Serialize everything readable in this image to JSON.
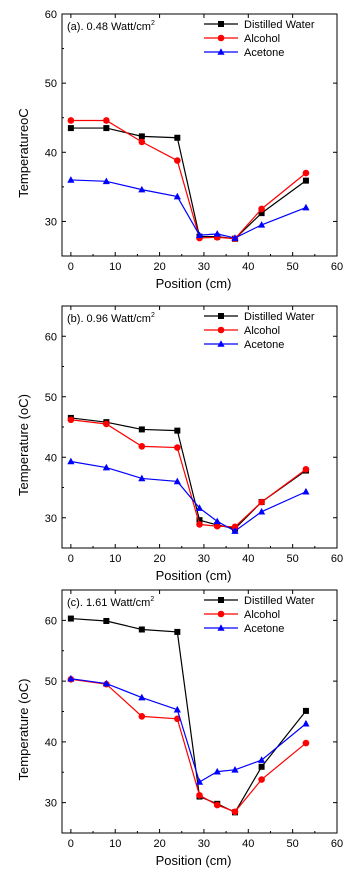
{
  "colors": {
    "distilled_water": "#000000",
    "alcohol": "#ff0000",
    "acetone": "#0000ff",
    "axis": "#000000"
  },
  "chart_data": [
    {
      "type": "line",
      "panel_label": "(a). 0.48 Watt/cm",
      "panel_label_sup": "2",
      "xlabel": "Position (cm)",
      "ylabel": "Temperature",
      "ylabel_unit": "oC",
      "xlim": [
        -2,
        60
      ],
      "ylim": [
        25,
        60
      ],
      "xticks": [
        0,
        10,
        20,
        30,
        40,
        50,
        60
      ],
      "yticks": [
        30,
        40,
        50,
        60
      ],
      "legend_position": "top-right",
      "x": [
        0,
        8,
        16,
        24,
        29,
        33,
        37,
        43,
        53
      ],
      "series": [
        {
          "name": "Distilled Water",
          "marker": "square",
          "values": [
            43.5,
            43.5,
            42.3,
            42.1,
            27.8,
            27.8,
            27.5,
            31.2,
            35.9
          ]
        },
        {
          "name": "Alcohol",
          "marker": "circle",
          "values": [
            44.6,
            44.6,
            41.5,
            38.8,
            27.6,
            27.7,
            27.5,
            31.8,
            37.0
          ]
        },
        {
          "name": "Acetone",
          "marker": "triangle",
          "values": [
            36.0,
            35.8,
            34.6,
            33.6,
            28.0,
            28.2,
            27.6,
            29.5,
            32.0
          ]
        }
      ]
    },
    {
      "type": "line",
      "panel_label": "(b). 0.96 Watt/cm",
      "panel_label_sup": "2",
      "xlabel": "Position (cm)",
      "ylabel": "Temperature (",
      "ylabel_unit": "oC)",
      "xlim": [
        -2,
        60
      ],
      "ylim": [
        25,
        65
      ],
      "xticks": [
        0,
        10,
        20,
        30,
        40,
        50,
        60
      ],
      "yticks": [
        30,
        40,
        50,
        60
      ],
      "legend_position": "top-right",
      "x": [
        0,
        8,
        16,
        24,
        29,
        33,
        37,
        43,
        53
      ],
      "series": [
        {
          "name": "Distilled Water",
          "marker": "square",
          "values": [
            46.5,
            45.8,
            44.6,
            44.4,
            29.6,
            28.8,
            28.2,
            32.6,
            37.8
          ]
        },
        {
          "name": "Alcohol",
          "marker": "circle",
          "values": [
            46.2,
            45.5,
            41.8,
            41.6,
            28.9,
            28.6,
            28.5,
            32.6,
            38.0
          ]
        },
        {
          "name": "Acetone",
          "marker": "triangle",
          "values": [
            39.3,
            38.3,
            36.5,
            36.0,
            31.6,
            29.4,
            27.8,
            31.0,
            34.3
          ]
        }
      ]
    },
    {
      "type": "line",
      "panel_label": "(c). 1.61 Watt/cm",
      "panel_label_sup": "2",
      "xlabel": "Position (cm)",
      "ylabel": "Temperature (",
      "ylabel_unit": "oC)",
      "xlim": [
        -2,
        60
      ],
      "ylim": [
        25,
        65
      ],
      "xticks": [
        0,
        10,
        20,
        30,
        40,
        50,
        60
      ],
      "yticks": [
        30,
        40,
        50,
        60
      ],
      "legend_position": "top-right",
      "x": [
        0,
        8,
        16,
        24,
        29,
        33,
        37,
        43,
        53
      ],
      "series": [
        {
          "name": "Distilled Water",
          "marker": "square",
          "values": [
            60.3,
            59.9,
            58.5,
            58.1,
            31.0,
            29.8,
            28.4,
            35.9,
            45.1
          ]
        },
        {
          "name": "Alcohol",
          "marker": "circle",
          "values": [
            50.3,
            49.5,
            44.2,
            43.8,
            31.2,
            29.6,
            28.5,
            33.8,
            39.8
          ]
        },
        {
          "name": "Acetone",
          "marker": "triangle",
          "values": [
            50.4,
            49.6,
            47.3,
            45.3,
            33.4,
            35.1,
            35.4,
            37.0,
            43.0
          ]
        }
      ]
    }
  ]
}
